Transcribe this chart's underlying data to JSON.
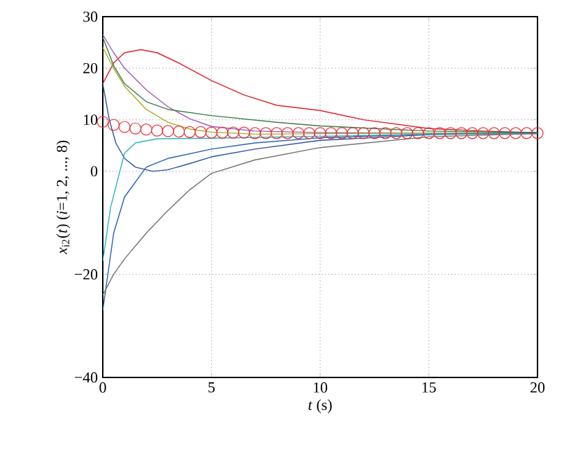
{
  "chart_data": {
    "type": "line",
    "xlabel": "*t* (s)",
    "ylabel": "*x*$_{i2}$(*t*) (*i*=1, 2, ..., 8)",
    "xlim": [
      0,
      20
    ],
    "xticks": [
      0,
      5,
      10,
      15,
      20
    ],
    "ylim": [
      -40,
      30
    ],
    "yticks": [
      {
        "value": -40,
        "label": "−40"
      },
      {
        "value": -20,
        "label": "−20"
      },
      0,
      10,
      20,
      30
    ],
    "grid": true,
    "line_style": "solid",
    "series": [
      {
        "color": "#e0202a",
        "x": [
          0,
          0.5,
          1,
          1.75,
          2.5,
          3.5,
          5,
          6.5,
          8,
          10,
          12,
          15,
          17.5,
          20
        ],
        "values": [
          17,
          21,
          23,
          23.6,
          23,
          21,
          17.6,
          14.8,
          12.8,
          11.8,
          10,
          8.3,
          7.8,
          7.5
        ]
      },
      {
        "color": "#9b59b6",
        "x": [
          0,
          0.5,
          1,
          2,
          3,
          4,
          5,
          7,
          10,
          15,
          20
        ],
        "values": [
          26.5,
          23,
          20,
          15.8,
          12.5,
          10.2,
          8.7,
          7.8,
          7.5,
          7.4,
          7.4
        ]
      },
      {
        "color": "#3a7d44",
        "x": [
          0,
          0.5,
          1,
          2,
          3,
          5,
          8,
          10,
          15,
          20
        ],
        "values": [
          26,
          20.5,
          17,
          13.5,
          12,
          10.8,
          9.5,
          8.8,
          7.8,
          7.5
        ]
      },
      {
        "color": "#aaaa22",
        "x": [
          0,
          0.5,
          1,
          2,
          3,
          4,
          5,
          7,
          10,
          15,
          20
        ],
        "values": [
          24,
          20,
          16.5,
          12,
          9.5,
          8.2,
          7.6,
          7.2,
          7.3,
          7.4,
          7.4
        ]
      },
      {
        "color": "#2a4fa0",
        "x": [
          0,
          0.3,
          0.6,
          1,
          1.5,
          2.3,
          3,
          4,
          5,
          7,
          10,
          15,
          20
        ],
        "values": [
          17,
          10,
          5.5,
          2.5,
          0.8,
          0,
          0.3,
          1.5,
          2.8,
          4.3,
          6,
          7.1,
          7.4
        ]
      },
      {
        "color": "#2060b0",
        "x": [
          0,
          0.5,
          1,
          2,
          3,
          5,
          7,
          10,
          15,
          20
        ],
        "values": [
          -27,
          -12,
          -5,
          0.8,
          2.5,
          4.3,
          5.5,
          6.5,
          7.2,
          7.4
        ]
      },
      {
        "color": "#22b5c0",
        "x": [
          0,
          0.36,
          1,
          1.5,
          2.5,
          5,
          10,
          15,
          20
        ],
        "values": [
          -17.4,
          -7,
          3.5,
          5.5,
          6.3,
          6.4,
          6.8,
          7.2,
          7.3
        ]
      },
      {
        "color": "#707070",
        "x": [
          0,
          0.5,
          1,
          2,
          3,
          4,
          5,
          7,
          10,
          15,
          20
        ],
        "values": [
          -24,
          -20,
          -17,
          -12,
          -7.6,
          -3.6,
          -0.4,
          2.2,
          4.6,
          6.7,
          7.3
        ]
      },
      {
        "type": "scatter",
        "marker": "circle",
        "color": "#e8303a",
        "x": [
          0,
          0.5,
          1,
          1.5,
          2,
          2.5,
          3,
          3.5,
          4,
          4.5,
          5,
          5.5,
          6,
          6.5,
          7,
          7.5,
          8,
          8.5,
          9,
          9.5,
          10,
          10.5,
          11,
          11.5,
          12,
          12.5,
          13,
          13.5,
          14,
          14.5,
          15,
          15.5,
          16,
          16.5,
          17,
          17.5,
          18,
          18.5,
          19,
          19.5,
          20
        ],
        "values": [
          9.6,
          9.0,
          8.6,
          8.3,
          8.1,
          7.9,
          7.8,
          7.7,
          7.6,
          7.6,
          7.5,
          7.5,
          7.5,
          7.5,
          7.4,
          7.4,
          7.4,
          7.4,
          7.4,
          7.4,
          7.4,
          7.4,
          7.4,
          7.4,
          7.4,
          7.4,
          7.4,
          7.4,
          7.4,
          7.4,
          7.4,
          7.4,
          7.4,
          7.4,
          7.4,
          7.4,
          7.4,
          7.4,
          7.4,
          7.4,
          7.4
        ]
      }
    ]
  }
}
